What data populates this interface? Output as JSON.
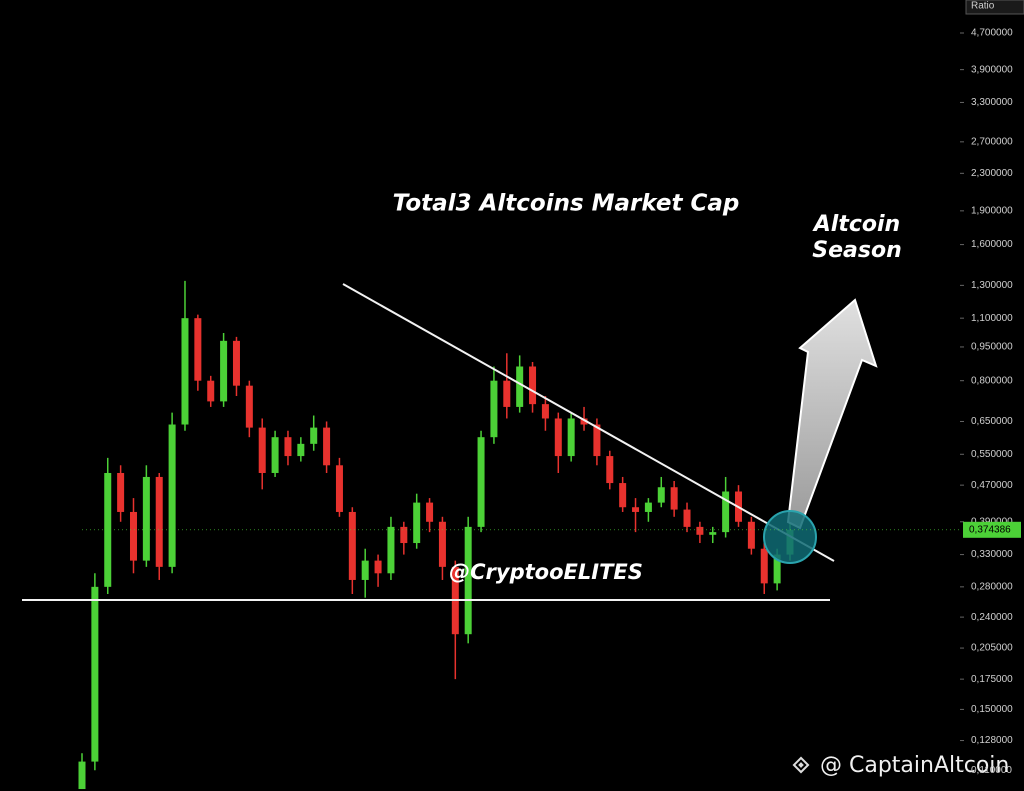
{
  "chart_data": {
    "type": "candlestick",
    "title": "Total3 Altcoins Market Cap",
    "annotation": [
      "Altcoin",
      "Season"
    ],
    "watermark": "@CryptooELITES",
    "source": "@ CaptainAltcoin",
    "y_label": "Ratio",
    "last_price_label": "0,374386",
    "log_scale": true,
    "up_color": "#4cd137",
    "down_color": "#e8322e",
    "categories": [
      null,
      null,
      null,
      null,
      null,
      null,
      null,
      null,
      null,
      null,
      null,
      null,
      null,
      null,
      null,
      null,
      null,
      null,
      null,
      null,
      null,
      null,
      null,
      null,
      null,
      null,
      null,
      null,
      null,
      null,
      null,
      null,
      null,
      null,
      null,
      null,
      null,
      null,
      null,
      null,
      null,
      null,
      null,
      null,
      null,
      null,
      null,
      null,
      null,
      null,
      null,
      null,
      null,
      null,
      null,
      null
    ],
    "open": [
      0.1,
      0.115,
      0.28,
      0.5,
      0.41,
      0.32,
      0.49,
      0.31,
      0.64,
      1.1,
      0.8,
      0.72,
      0.98,
      0.78,
      0.63,
      0.5,
      0.6,
      0.545,
      0.58,
      0.63,
      0.52,
      0.41,
      0.29,
      0.32,
      0.3,
      0.38,
      0.35,
      0.43,
      0.39,
      0.31,
      0.22,
      0.38,
      0.6,
      0.8,
      0.7,
      0.86,
      0.71,
      0.66,
      0.545,
      0.66,
      0.64,
      0.545,
      0.475,
      0.42,
      0.41,
      0.43,
      0.465,
      0.415,
      0.38,
      0.365,
      0.37,
      0.455,
      0.39,
      0.34,
      0.285,
      0.33
    ],
    "high": [
      0.12,
      0.3,
      0.54,
      0.52,
      0.44,
      0.52,
      0.5,
      0.68,
      1.33,
      1.12,
      0.82,
      1.02,
      1.0,
      0.8,
      0.66,
      0.62,
      0.62,
      0.6,
      0.67,
      0.65,
      0.54,
      0.42,
      0.34,
      0.33,
      0.4,
      0.39,
      0.45,
      0.44,
      0.4,
      0.32,
      0.4,
      0.62,
      0.86,
      0.92,
      0.91,
      0.88,
      0.74,
      0.68,
      0.68,
      0.7,
      0.66,
      0.56,
      0.49,
      0.44,
      0.44,
      0.49,
      0.48,
      0.43,
      0.39,
      0.38,
      0.49,
      0.47,
      0.4,
      0.35,
      0.34,
      0.39
    ],
    "low": [
      0.1,
      0.11,
      0.27,
      0.39,
      0.3,
      0.31,
      0.29,
      0.3,
      0.62,
      0.76,
      0.7,
      0.7,
      0.74,
      0.6,
      0.46,
      0.49,
      0.52,
      0.53,
      0.56,
      0.5,
      0.4,
      0.27,
      0.265,
      0.28,
      0.29,
      0.33,
      0.34,
      0.37,
      0.29,
      0.175,
      0.21,
      0.37,
      0.58,
      0.66,
      0.68,
      0.68,
      0.62,
      0.5,
      0.53,
      0.62,
      0.52,
      0.46,
      0.41,
      0.37,
      0.39,
      0.42,
      0.4,
      0.37,
      0.35,
      0.35,
      0.36,
      0.38,
      0.33,
      0.27,
      0.275,
      0.32
    ],
    "close": [
      0.115,
      0.28,
      0.5,
      0.41,
      0.32,
      0.49,
      0.31,
      0.64,
      1.1,
      0.8,
      0.72,
      0.98,
      0.78,
      0.63,
      0.5,
      0.6,
      0.545,
      0.58,
      0.63,
      0.52,
      0.41,
      0.29,
      0.32,
      0.3,
      0.38,
      0.35,
      0.43,
      0.39,
      0.31,
      0.22,
      0.38,
      0.6,
      0.8,
      0.7,
      0.86,
      0.71,
      0.66,
      0.545,
      0.66,
      0.64,
      0.545,
      0.475,
      0.42,
      0.41,
      0.43,
      0.465,
      0.415,
      0.38,
      0.365,
      0.37,
      0.455,
      0.39,
      0.34,
      0.285,
      0.33,
      0.374386
    ],
    "ylim": [
      0.099,
      5.56
    ],
    "yticks": [
      {
        "value": 4.7,
        "label": "4,700000"
      },
      {
        "value": 3.9,
        "label": "3,900000"
      },
      {
        "value": 3.3,
        "label": "3,300000"
      },
      {
        "value": 2.7,
        "label": "2,700000"
      },
      {
        "value": 2.3,
        "label": "2,300000"
      },
      {
        "value": 1.9,
        "label": "1,900000"
      },
      {
        "value": 1.6,
        "label": "1,600000"
      },
      {
        "value": 1.3,
        "label": "1,300000"
      },
      {
        "value": 1.1,
        "label": "1,100000"
      },
      {
        "value": 0.95,
        "label": "0,950000"
      },
      {
        "value": 0.8,
        "label": "0,800000"
      },
      {
        "value": 0.65,
        "label": "0,650000"
      },
      {
        "value": 0.55,
        "label": "0,550000"
      },
      {
        "value": 0.47,
        "label": "0,470000"
      },
      {
        "value": 0.39,
        "label": "0,390000"
      },
      {
        "value": 0.33,
        "label": "0,330000"
      },
      {
        "value": 0.28,
        "label": "0,280000"
      },
      {
        "value": 0.24,
        "label": "0,240000"
      },
      {
        "value": 0.205,
        "label": "0,205000"
      },
      {
        "value": 0.175,
        "label": "0,175000"
      },
      {
        "value": 0.15,
        "label": "0,150000"
      },
      {
        "value": 0.128,
        "label": "0,128000"
      },
      {
        "value": 0.11,
        "label": "0,110000"
      }
    ]
  }
}
